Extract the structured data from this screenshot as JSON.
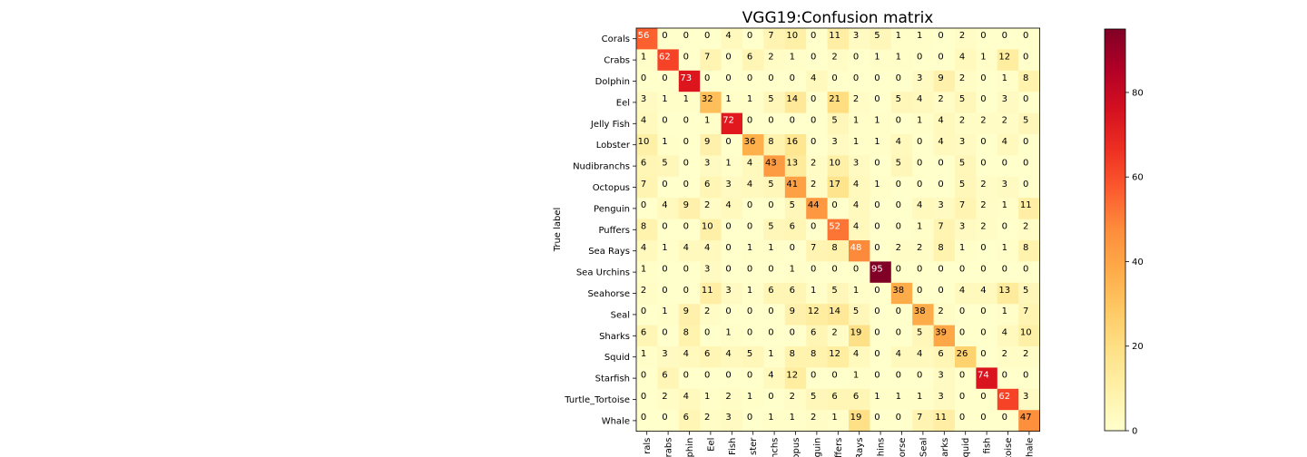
{
  "chart_data": {
    "type": "heatmap",
    "title": "VGG19:Confusion matrix",
    "ylabel": "True label",
    "xlabel": "",
    "colormap": "YlOrRd",
    "color_range": [
      0,
      95
    ],
    "colorbar_ticks": [
      "0",
      "20",
      "40",
      "60",
      "80"
    ],
    "labels": [
      "Corals",
      "Crabs",
      "Dolphin",
      "Eel",
      "Jelly Fish",
      "Lobster",
      "Nudibranchs",
      "Octopus",
      "Penguin",
      "Puffers",
      "Sea Rays",
      "Sea Urchins",
      "Seahorse",
      "Seal",
      "Sharks",
      "Squid",
      "Starfish",
      "Turtle_Tortoise",
      "Whale"
    ],
    "x_tick_labels": [
      "rals",
      "rabs",
      "phin",
      "Eel",
      "Fish",
      "ster",
      "nchs",
      "opus",
      "guin",
      "ffers",
      "Rays",
      "chins",
      "orse",
      "Seal",
      "arks",
      "quid",
      "fish",
      "toise",
      "hale"
    ],
    "matrix": [
      [
        56,
        0,
        0,
        0,
        4,
        0,
        7,
        10,
        0,
        11,
        3,
        5,
        1,
        1,
        0,
        2,
        0,
        0,
        0
      ],
      [
        1,
        62,
        0,
        7,
        0,
        6,
        2,
        1,
        0,
        2,
        0,
        1,
        1,
        0,
        0,
        4,
        1,
        12,
        0
      ],
      [
        0,
        0,
        73,
        0,
        0,
        0,
        0,
        0,
        4,
        0,
        0,
        0,
        0,
        3,
        9,
        2,
        0,
        1,
        8
      ],
      [
        3,
        1,
        1,
        32,
        1,
        1,
        5,
        14,
        0,
        21,
        2,
        0,
        5,
        4,
        2,
        5,
        0,
        3,
        0
      ],
      [
        4,
        0,
        0,
        1,
        72,
        0,
        0,
        0,
        0,
        5,
        1,
        1,
        0,
        1,
        4,
        2,
        2,
        2,
        5
      ],
      [
        10,
        1,
        0,
        9,
        0,
        36,
        8,
        16,
        0,
        3,
        1,
        1,
        4,
        0,
        4,
        3,
        0,
        4,
        0
      ],
      [
        6,
        5,
        0,
        3,
        1,
        4,
        43,
        13,
        2,
        10,
        3,
        0,
        5,
        0,
        0,
        5,
        0,
        0,
        0
      ],
      [
        7,
        0,
        0,
        6,
        3,
        4,
        5,
        41,
        2,
        17,
        4,
        1,
        0,
        0,
        0,
        5,
        2,
        3,
        0
      ],
      [
        0,
        4,
        9,
        2,
        4,
        0,
        0,
        5,
        44,
        0,
        4,
        0,
        0,
        4,
        3,
        7,
        2,
        1,
        11
      ],
      [
        8,
        0,
        0,
        10,
        0,
        0,
        5,
        6,
        0,
        52,
        4,
        0,
        0,
        1,
        7,
        3,
        2,
        0,
        2
      ],
      [
        4,
        1,
        4,
        4,
        0,
        1,
        1,
        0,
        7,
        8,
        48,
        0,
        2,
        2,
        8,
        1,
        0,
        1,
        8
      ],
      [
        1,
        0,
        0,
        3,
        0,
        0,
        0,
        1,
        0,
        0,
        0,
        95,
        0,
        0,
        0,
        0,
        0,
        0,
        0
      ],
      [
        2,
        0,
        0,
        11,
        3,
        1,
        6,
        6,
        1,
        5,
        1,
        0,
        38,
        0,
        0,
        4,
        4,
        13,
        5
      ],
      [
        0,
        1,
        9,
        2,
        0,
        0,
        0,
        9,
        12,
        14,
        5,
        0,
        0,
        38,
        2,
        0,
        0,
        1,
        7
      ],
      [
        6,
        0,
        8,
        0,
        1,
        0,
        0,
        0,
        6,
        2,
        19,
        0,
        0,
        5,
        39,
        0,
        0,
        4,
        10
      ],
      [
        1,
        3,
        4,
        6,
        4,
        5,
        1,
        8,
        8,
        12,
        4,
        0,
        4,
        4,
        6,
        26,
        0,
        2,
        2
      ],
      [
        0,
        6,
        0,
        0,
        0,
        0,
        4,
        12,
        0,
        0,
        1,
        0,
        0,
        0,
        3,
        0,
        74,
        0,
        0
      ],
      [
        0,
        2,
        4,
        1,
        2,
        1,
        0,
        2,
        5,
        6,
        6,
        1,
        1,
        1,
        3,
        0,
        0,
        62,
        3
      ],
      [
        0,
        0,
        6,
        2,
        3,
        0,
        1,
        1,
        2,
        1,
        19,
        0,
        0,
        7,
        11,
        0,
        0,
        0,
        47
      ]
    ]
  }
}
